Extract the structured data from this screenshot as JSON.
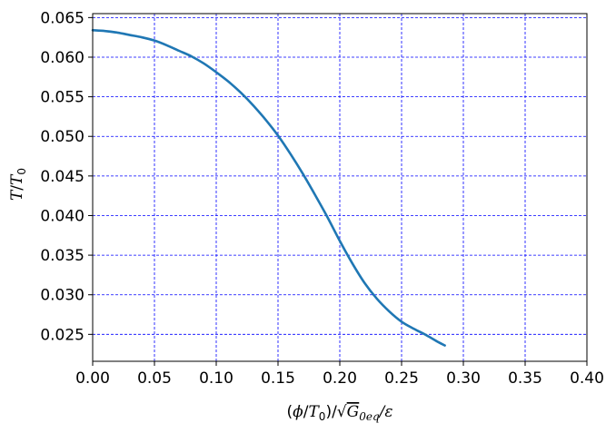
{
  "chart_data": {
    "type": "line",
    "xlabel": "(ϕ/T₀)/√G₀ₑq/ε",
    "ylabel": "T/T₀",
    "xlim": [
      0.0,
      0.4
    ],
    "ylim": [
      0.0216,
      0.0655
    ],
    "x_ticks": [
      "0.00",
      "0.05",
      "0.10",
      "0.15",
      "0.20",
      "0.25",
      "0.30",
      "0.35",
      "0.40"
    ],
    "y_ticks": [
      "0.025",
      "0.030",
      "0.035",
      "0.040",
      "0.045",
      "0.050",
      "0.055",
      "0.060",
      "0.065"
    ],
    "grid": true,
    "grid_color": "#0000ff",
    "series": [
      {
        "color": "#1f77b4",
        "x": [
          0.0,
          0.01,
          0.02,
          0.03,
          0.04,
          0.05,
          0.06,
          0.07,
          0.08,
          0.09,
          0.1,
          0.11,
          0.12,
          0.13,
          0.14,
          0.15,
          0.16,
          0.17,
          0.18,
          0.19,
          0.2,
          0.21,
          0.22,
          0.23,
          0.24,
          0.25,
          0.26,
          0.27,
          0.28,
          0.285
        ],
        "y": [
          0.0634,
          0.0633,
          0.0631,
          0.0628,
          0.0625,
          0.0621,
          0.0615,
          0.0608,
          0.0601,
          0.0592,
          0.0581,
          0.0569,
          0.0555,
          0.0539,
          0.0521,
          0.0501,
          0.0478,
          0.0453,
          0.0426,
          0.0398,
          0.0368,
          0.034,
          0.0315,
          0.0295,
          0.0279,
          0.0266,
          0.0257,
          0.0249,
          0.024,
          0.0236
        ]
      }
    ]
  }
}
